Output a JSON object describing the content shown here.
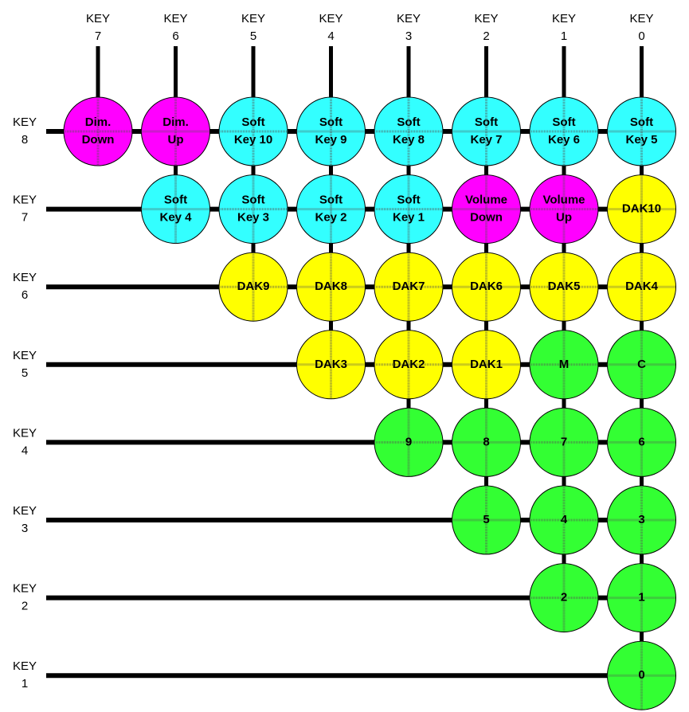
{
  "columns": [
    {
      "lines": [
        "KEY",
        "7"
      ]
    },
    {
      "lines": [
        "KEY",
        "6"
      ]
    },
    {
      "lines": [
        "KEY",
        "5"
      ]
    },
    {
      "lines": [
        "KEY",
        "4"
      ]
    },
    {
      "lines": [
        "KEY",
        "3"
      ]
    },
    {
      "lines": [
        "KEY",
        "2"
      ]
    },
    {
      "lines": [
        "KEY",
        "1"
      ]
    },
    {
      "lines": [
        "KEY",
        "0"
      ]
    }
  ],
  "rows": [
    {
      "lines": [
        "KEY",
        "8"
      ],
      "nodes": [
        {
          "lines": [
            "Dim.",
            "Down"
          ],
          "color": "#ff00ff"
        },
        {
          "lines": [
            "Dim.",
            "Up"
          ],
          "color": "#ff00ff"
        },
        {
          "lines": [
            "Soft",
            "Key 10"
          ],
          "color": "#33ffff"
        },
        {
          "lines": [
            "Soft",
            "Key 9"
          ],
          "color": "#33ffff"
        },
        {
          "lines": [
            "Soft",
            "Key 8"
          ],
          "color": "#33ffff"
        },
        {
          "lines": [
            "Soft",
            "Key 7"
          ],
          "color": "#33ffff"
        },
        {
          "lines": [
            "Soft",
            "Key 6"
          ],
          "color": "#33ffff"
        },
        {
          "lines": [
            "Soft",
            "Key 5"
          ],
          "color": "#33ffff"
        }
      ]
    },
    {
      "lines": [
        "KEY",
        "7"
      ],
      "nodes": [
        {
          "lines": [
            "Soft",
            "Key 4"
          ],
          "color": "#33ffff"
        },
        {
          "lines": [
            "Soft",
            "Key 3"
          ],
          "color": "#33ffff"
        },
        {
          "lines": [
            "Soft",
            "Key 2"
          ],
          "color": "#33ffff"
        },
        {
          "lines": [
            "Soft",
            "Key 1"
          ],
          "color": "#33ffff"
        },
        {
          "lines": [
            "Volume",
            "Down"
          ],
          "color": "#ff00ff"
        },
        {
          "lines": [
            "Volume",
            "Up"
          ],
          "color": "#ff00ff"
        },
        {
          "lines": [
            "DAK10"
          ],
          "color": "#ffff00"
        }
      ]
    },
    {
      "lines": [
        "KEY",
        "6"
      ],
      "nodes": [
        {
          "lines": [
            "DAK9"
          ],
          "color": "#ffff00"
        },
        {
          "lines": [
            "DAK8"
          ],
          "color": "#ffff00"
        },
        {
          "lines": [
            "DAK7"
          ],
          "color": "#ffff00"
        },
        {
          "lines": [
            "DAK6"
          ],
          "color": "#ffff00"
        },
        {
          "lines": [
            "DAK5"
          ],
          "color": "#ffff00"
        },
        {
          "lines": [
            "DAK4"
          ],
          "color": "#ffff00"
        }
      ]
    },
    {
      "lines": [
        "KEY",
        "5"
      ],
      "nodes": [
        {
          "lines": [
            "DAK3"
          ],
          "color": "#ffff00"
        },
        {
          "lines": [
            "DAK2"
          ],
          "color": "#ffff00"
        },
        {
          "lines": [
            "DAK1"
          ],
          "color": "#ffff00"
        },
        {
          "lines": [
            "M"
          ],
          "color": "#33ff33"
        },
        {
          "lines": [
            "C"
          ],
          "color": "#33ff33"
        }
      ]
    },
    {
      "lines": [
        "KEY",
        "4"
      ],
      "nodes": [
        {
          "lines": [
            "9"
          ],
          "color": "#33ff33"
        },
        {
          "lines": [
            "8"
          ],
          "color": "#33ff33"
        },
        {
          "lines": [
            "7"
          ],
          "color": "#33ff33"
        },
        {
          "lines": [
            "6"
          ],
          "color": "#33ff33"
        }
      ]
    },
    {
      "lines": [
        "KEY",
        "3"
      ],
      "nodes": [
        {
          "lines": [
            "5"
          ],
          "color": "#33ff33"
        },
        {
          "lines": [
            "4"
          ],
          "color": "#33ff33"
        },
        {
          "lines": [
            "3"
          ],
          "color": "#33ff33"
        }
      ]
    },
    {
      "lines": [
        "KEY",
        "2"
      ],
      "nodes": [
        {
          "lines": [
            "2"
          ],
          "color": "#33ff33"
        },
        {
          "lines": [
            "1"
          ],
          "color": "#33ff33"
        }
      ]
    },
    {
      "lines": [
        "KEY",
        "1"
      ],
      "nodes": [
        {
          "lines": [
            "0"
          ],
          "color": "#33ff33"
        }
      ]
    }
  ]
}
